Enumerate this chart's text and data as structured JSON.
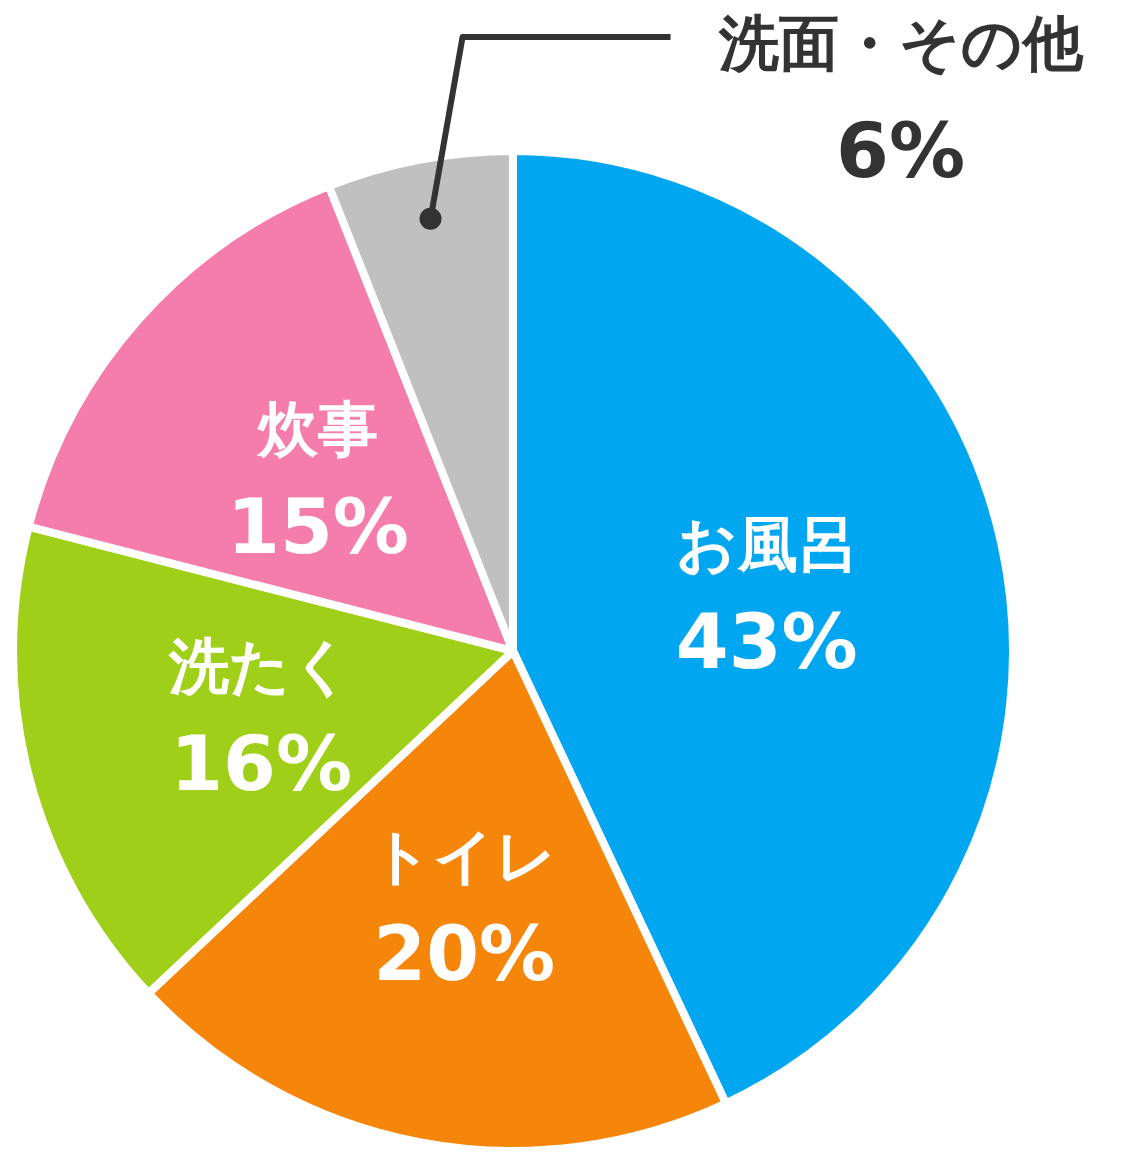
{
  "chart_data": {
    "type": "pie",
    "categories": [
      "お風呂",
      "トイレ",
      "洗たく",
      "炊事",
      "洗面・その他"
    ],
    "values": [
      43,
      20,
      16,
      15,
      6
    ],
    "value_labels": [
      "43%",
      "20%",
      "16%",
      "15%",
      "6%"
    ],
    "colors": [
      "#00a6f0",
      "#f5860a",
      "#a0cf1a",
      "#f57dab",
      "#c0c0c0"
    ]
  }
}
